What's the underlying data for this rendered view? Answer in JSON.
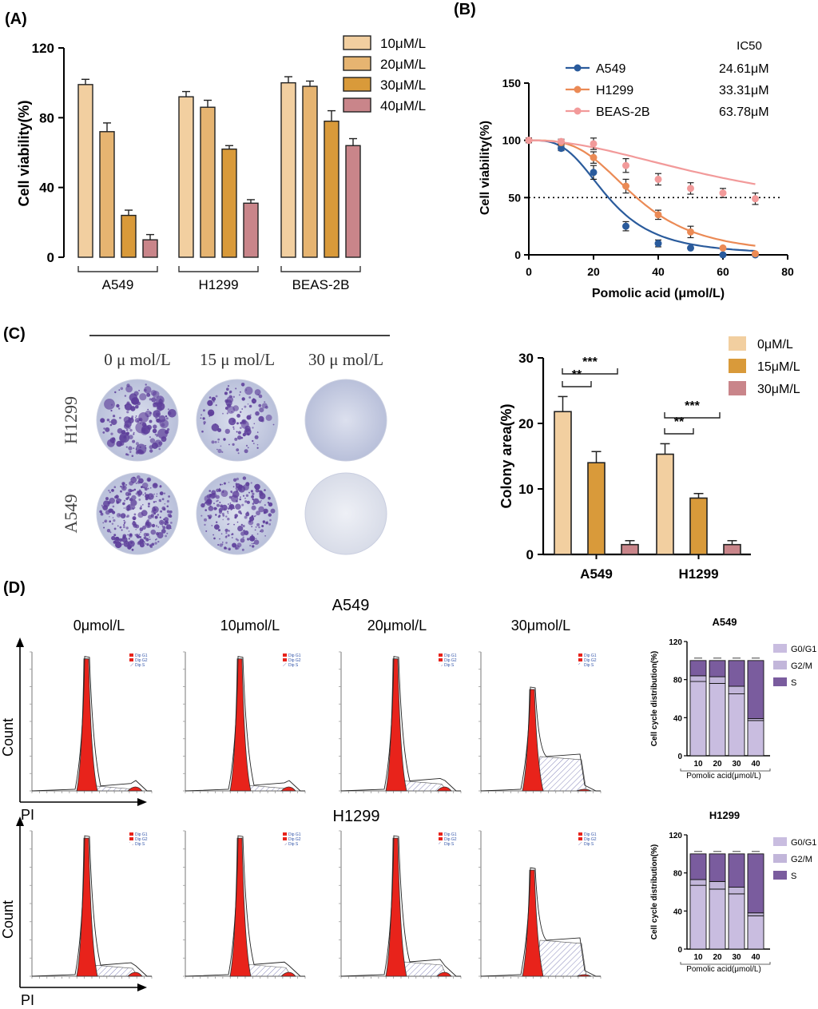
{
  "colors": {
    "c10": "#F2CFA0",
    "c20": "#E6B471",
    "c30": "#D99A3A",
    "c40": "#C9858A",
    "a549": "#2A5B9C",
    "h1299": "#EB8A55",
    "beas": "#F29A9A",
    "g0g1": "#C9BDE0",
    "g2m": "#C2B6DA",
    "s": "#7A5C9E",
    "peak": "#E8231B",
    "plate": "#C7CCE2",
    "dot": "#5D3E9A"
  },
  "panelA": {
    "label": "(A)",
    "chart_data": {
      "type": "bar",
      "title": "",
      "ylabel": "Cell viability(%)",
      "xlabel": "",
      "ylim": [
        0,
        120
      ],
      "yticks": [
        "0",
        "40",
        "80",
        "120"
      ],
      "categories": [
        "A549",
        "H1299",
        "BEAS-2B"
      ],
      "series": [
        {
          "name": "10μM/L",
          "values": [
            99,
            92,
            100
          ],
          "errors": [
            3,
            3,
            3.5
          ]
        },
        {
          "name": "20μM/L",
          "values": [
            72,
            86,
            98
          ],
          "errors": [
            5,
            4,
            3
          ]
        },
        {
          "name": "30μM/L",
          "values": [
            24,
            62,
            78
          ],
          "errors": [
            3,
            2,
            6
          ]
        },
        {
          "name": "40μM/L",
          "values": [
            10,
            31,
            64
          ],
          "errors": [
            3,
            2,
            4
          ]
        }
      ]
    }
  },
  "panelB": {
    "label": "(B)",
    "ic50_header": "IC50",
    "chart_data": {
      "type": "line",
      "xlabel": "Pomolic acid (μmol/L)",
      "ylabel": "Cell viability(%)",
      "xlim": [
        0,
        80
      ],
      "ylim": [
        0,
        150
      ],
      "xticks": [
        "0",
        "20",
        "40",
        "60",
        "80"
      ],
      "yticks": [
        "0",
        "50",
        "100",
        "150"
      ],
      "reference_y": 50,
      "series": [
        {
          "name": "A549",
          "ic50": "24.61μM",
          "x": [
            0,
            10,
            20,
            30,
            40,
            50,
            60,
            70
          ],
          "y": [
            100,
            93,
            72,
            25,
            10,
            6,
            0,
            0
          ],
          "err": [
            2,
            2,
            6,
            4,
            3,
            1,
            1,
            1
          ]
        },
        {
          "name": "H1299",
          "ic50": "33.31μM",
          "x": [
            0,
            10,
            20,
            30,
            40,
            50,
            60,
            70
          ],
          "y": [
            100,
            98,
            85,
            60,
            35,
            20,
            6,
            1
          ],
          "err": [
            2,
            2,
            5,
            6,
            4,
            5,
            1,
            1
          ]
        },
        {
          "name": "BEAS-2B",
          "ic50": "63.78μM",
          "x": [
            0,
            10,
            20,
            30,
            40,
            50,
            60,
            70
          ],
          "y": [
            100,
            99,
            97,
            78,
            66,
            58,
            54,
            49
          ],
          "err": [
            2,
            2,
            5,
            6,
            5,
            5,
            4,
            5
          ]
        }
      ]
    }
  },
  "panelC": {
    "label": "(C)",
    "col_labels": [
      "0 μ mol/L",
      "15 μ mol/L",
      "30 μ mol/L"
    ],
    "row_labels": [
      "H1299",
      "A549"
    ],
    "chart_data": {
      "type": "bar",
      "ylabel": "Colony area(%)",
      "ylim": [
        0,
        30
      ],
      "yticks": [
        "0",
        "10",
        "20",
        "30"
      ],
      "categories": [
        "A549",
        "H1299"
      ],
      "series": [
        {
          "name": "0μM/L",
          "values": [
            21.8,
            15.3
          ],
          "errors": [
            2.3,
            1.6
          ]
        },
        {
          "name": "15μM/L",
          "values": [
            14,
            8.6
          ],
          "errors": [
            1.7,
            0.7
          ]
        },
        {
          "name": "30μM/L",
          "values": [
            1.5,
            1.5
          ],
          "errors": [
            0.6,
            0.6
          ]
        }
      ],
      "significance": [
        "**",
        "***",
        "**",
        "***"
      ]
    }
  },
  "panelD": {
    "label": "(D)",
    "row_titles": [
      "A549",
      "H1299"
    ],
    "conc_labels": [
      "0μmol/L",
      "10μmol/L",
      "20μmol/L",
      "30μmol/L"
    ],
    "axis_x": "PI",
    "axis_y": "Count",
    "legend_small": [
      "Dip G1",
      "Dip G2",
      "Dip S"
    ],
    "stacked": {
      "chart_data": [
        {
          "type": "bar",
          "title": "A549",
          "ylabel": "Cell cycle distribution(%)",
          "xlabel": "Pomolic acid(μmol/L)",
          "categories": [
            "10",
            "20",
            "30",
            "40"
          ],
          "ylim": [
            0,
            120
          ],
          "yticks": [
            "0",
            "40",
            "80",
            "120"
          ],
          "series": [
            {
              "name": "G0/G1",
              "values": [
                78,
                76,
                65,
                37
              ]
            },
            {
              "name": "G2/M",
              "values": [
                6,
                7,
                8,
                2
              ]
            },
            {
              "name": "S",
              "values": [
                16,
                17,
                27,
                61
              ]
            }
          ]
        },
        {
          "type": "bar",
          "title": "H1299",
          "ylabel": "Cell cycle distribution(%)",
          "xlabel": "Pomolic acid(μmol/L)",
          "categories": [
            "10",
            "20",
            "30",
            "40"
          ],
          "ylim": [
            0,
            120
          ],
          "yticks": [
            "0",
            "40",
            "80",
            "120"
          ],
          "series": [
            {
              "name": "G0/G1",
              "values": [
                67,
                63,
                58,
                35
              ]
            },
            {
              "name": "G2/M",
              "values": [
                6,
                8,
                7,
                3
              ]
            },
            {
              "name": "S",
              "values": [
                27,
                29,
                35,
                62
              ]
            }
          ]
        }
      ]
    }
  }
}
